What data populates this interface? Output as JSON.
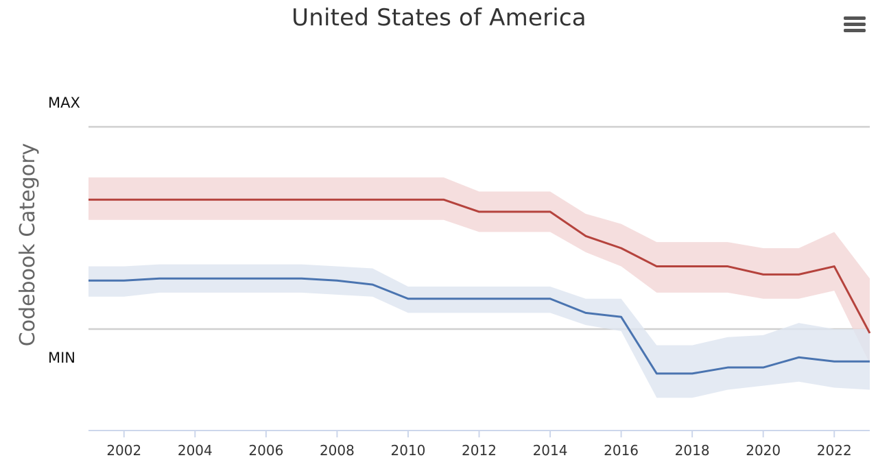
{
  "chart_data": {
    "type": "line",
    "title": "United States of America",
    "xlabel": "",
    "ylabel": "Codebook Category",
    "x": [
      2001,
      2002,
      2003,
      2004,
      2005,
      2006,
      2007,
      2008,
      2009,
      2010,
      2011,
      2012,
      2013,
      2014,
      2015,
      2016,
      2017,
      2018,
      2019,
      2020,
      2021,
      2022,
      2023
    ],
    "xlim": [
      2001,
      2023
    ],
    "x_ticks": [
      "2002",
      "2004",
      "2006",
      "2008",
      "2010",
      "2012",
      "2014",
      "2016",
      "2018",
      "2020",
      "2022"
    ],
    "y_category_labels": {
      "max": "MAX",
      "min": "MIN"
    },
    "y_scale_note": "0 = MIN gridline, 1 = MAX gridline",
    "ylim": [
      -0.5,
      1.25
    ],
    "grid": true,
    "legend": "none",
    "series": [
      {
        "color": "#b5433d",
        "band_color": "#f2d6d6",
        "values": [
          0.64,
          0.64,
          0.64,
          0.64,
          0.64,
          0.64,
          0.64,
          0.64,
          0.64,
          0.64,
          0.64,
          0.58,
          0.58,
          0.58,
          0.46,
          0.4,
          0.31,
          0.31,
          0.31,
          0.27,
          0.27,
          0.31,
          -0.02
        ],
        "lower": [
          0.54,
          0.54,
          0.54,
          0.54,
          0.54,
          0.54,
          0.54,
          0.54,
          0.54,
          0.54,
          0.54,
          0.48,
          0.48,
          0.48,
          0.38,
          0.31,
          0.18,
          0.18,
          0.18,
          0.15,
          0.15,
          0.19,
          -0.17
        ],
        "upper": [
          0.75,
          0.75,
          0.75,
          0.75,
          0.75,
          0.75,
          0.75,
          0.75,
          0.75,
          0.75,
          0.75,
          0.68,
          0.68,
          0.68,
          0.57,
          0.52,
          0.43,
          0.43,
          0.43,
          0.4,
          0.4,
          0.48,
          0.25
        ]
      },
      {
        "color": "#4a74b0",
        "band_color": "#dde5f0",
        "values": [
          0.24,
          0.24,
          0.25,
          0.25,
          0.25,
          0.25,
          0.25,
          0.24,
          0.22,
          0.15,
          0.15,
          0.15,
          0.15,
          0.15,
          0.08,
          0.06,
          -0.22,
          -0.22,
          -0.19,
          -0.19,
          -0.14,
          -0.16,
          -0.16
        ],
        "lower": [
          0.16,
          0.16,
          0.18,
          0.18,
          0.18,
          0.18,
          0.18,
          0.17,
          0.16,
          0.08,
          0.08,
          0.08,
          0.08,
          0.08,
          0.02,
          -0.01,
          -0.34,
          -0.34,
          -0.3,
          -0.28,
          -0.26,
          -0.29,
          -0.3
        ],
        "upper": [
          0.31,
          0.31,
          0.32,
          0.32,
          0.32,
          0.32,
          0.32,
          0.31,
          0.3,
          0.21,
          0.21,
          0.21,
          0.21,
          0.21,
          0.15,
          0.15,
          -0.08,
          -0.08,
          -0.04,
          -0.03,
          0.03,
          0.0,
          0.0
        ]
      }
    ]
  }
}
